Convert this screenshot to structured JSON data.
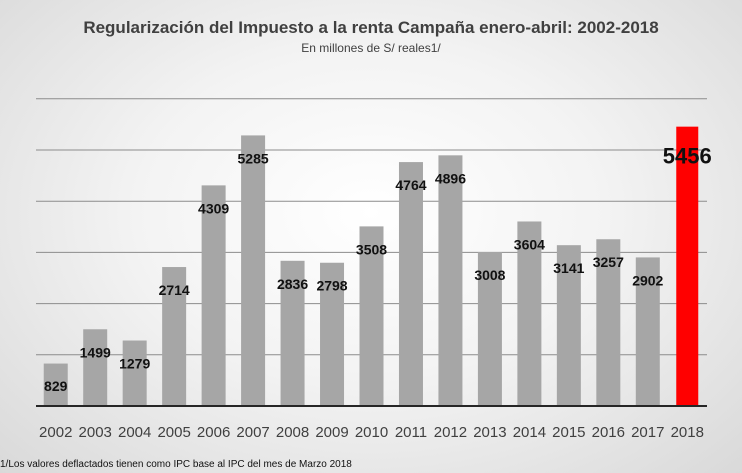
{
  "chart_data": {
    "type": "bar",
    "title": "Regularización del Impuesto a la renta Campaña enero-abril: 2002-2018",
    "subtitle": "En millones de S/ reales1/",
    "categories": [
      "2002",
      "2003",
      "2004",
      "2005",
      "2006",
      "2007",
      "2008",
      "2009",
      "2010",
      "2011",
      "2012",
      "2013",
      "2014",
      "2015",
      "2016",
      "2017",
      "2018"
    ],
    "values": [
      829,
      1499,
      1279,
      2714,
      4309,
      5285,
      2836,
      2798,
      3508,
      4764,
      4896,
      3008,
      3604,
      3141,
      3257,
      2902,
      5456
    ],
    "data_labels": [
      "829",
      "1499",
      "1279",
      "2714",
      "4309",
      "5285",
      "2836",
      "2798",
      "3508",
      "4764",
      "4896",
      "3008",
      "3604",
      "3141",
      "3257",
      "2902",
      "5456"
    ],
    "ylim": [
      0,
      6000
    ],
    "grid": true,
    "colors": {
      "bar": "#a6a6a6",
      "highlight": "#ff0000",
      "grid": "#8c8c8c",
      "axis": "#262626"
    },
    "highlight_index": 16,
    "footnote": "1/Los valores deflactados tienen como IPC base al IPC del mes de Marzo 2018"
  }
}
